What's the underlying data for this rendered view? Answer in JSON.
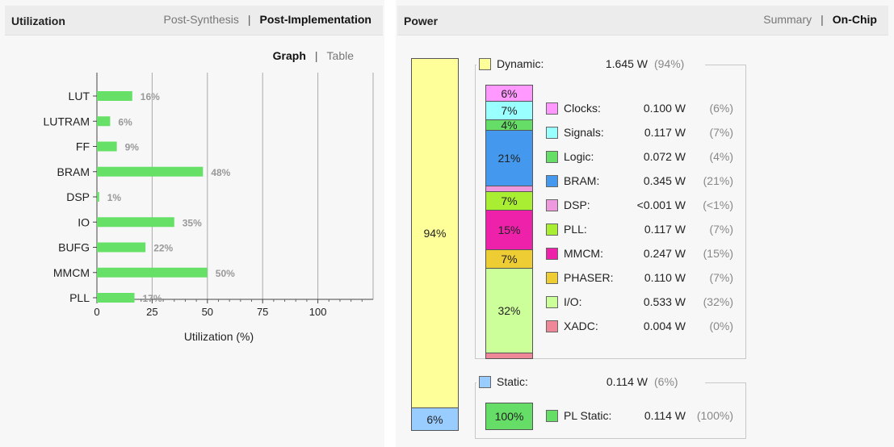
{
  "utilization": {
    "title": "Utilization",
    "tabs": [
      {
        "label": "Post-Synthesis",
        "active": false
      },
      {
        "label": "Post-Implementation",
        "active": true
      }
    ],
    "view_tabs": [
      {
        "label": "Graph",
        "active": true
      },
      {
        "label": "Table",
        "active": false
      }
    ]
  },
  "chart_data": {
    "type": "bar",
    "orientation": "horizontal",
    "categories": [
      "LUT",
      "LUTRAM",
      "FF",
      "BRAM",
      "DSP",
      "IO",
      "BUFG",
      "MMCM",
      "PLL"
    ],
    "values": [
      16,
      6,
      9,
      48,
      1,
      35,
      22,
      50,
      17
    ],
    "value_labels": [
      "16%",
      "6%",
      "9%",
      "48%",
      "1%",
      "35%",
      "22%",
      "50%",
      "17%"
    ],
    "xlabel": "Utilization (%)",
    "ylabel": "",
    "xlim": [
      0,
      125
    ],
    "xticks": [
      0,
      25,
      50,
      75,
      100
    ],
    "grid": true,
    "bar_color": "#66e066"
  },
  "power": {
    "title": "Power",
    "tabs": [
      {
        "label": "Summary",
        "active": false
      },
      {
        "label": "On-Chip",
        "active": true
      }
    ],
    "total_bar": [
      {
        "label": "94%",
        "fraction": 0.94,
        "color": "#ffff99"
      },
      {
        "label": "6%",
        "fraction": 0.06,
        "color": "#99ccff"
      }
    ],
    "dynamic": {
      "label": "Dynamic:",
      "value": "1.645 W",
      "percent": "(94%)",
      "color": "#ffff99",
      "components": [
        {
          "name": "Clocks:",
          "value": "0.100 W",
          "percent": "(6%)",
          "bar_label": "6%",
          "fraction": 0.06,
          "color": "#ff99ff"
        },
        {
          "name": "Signals:",
          "value": "0.117 W",
          "percent": "(7%)",
          "bar_label": "7%",
          "fraction": 0.07,
          "color": "#99ffff"
        },
        {
          "name": "Logic:",
          "value": "0.072 W",
          "percent": "(4%)",
          "bar_label": "4%",
          "fraction": 0.04,
          "color": "#66dd66"
        },
        {
          "name": "BRAM:",
          "value": "0.345 W",
          "percent": "(21%)",
          "bar_label": "21%",
          "fraction": 0.21,
          "color": "#4499ee"
        },
        {
          "name": "DSP:",
          "value": "<0.001 W",
          "percent": "(<1%)",
          "bar_label": "",
          "fraction": 0.015,
          "color": "#ee99dd"
        },
        {
          "name": "PLL:",
          "value": "0.117 W",
          "percent": "(7%)",
          "bar_label": "7%",
          "fraction": 0.07,
          "color": "#aaee33"
        },
        {
          "name": "MMCM:",
          "value": "0.247 W",
          "percent": "(15%)",
          "bar_label": "15%",
          "fraction": 0.15,
          "color": "#ee22aa"
        },
        {
          "name": "PHASER:",
          "value": "0.110 W",
          "percent": "(7%)",
          "bar_label": "7%",
          "fraction": 0.07,
          "color": "#eecc33"
        },
        {
          "name": "I/O:",
          "value": "0.533 W",
          "percent": "(32%)",
          "bar_label": "32%",
          "fraction": 0.32,
          "color": "#ccff99"
        },
        {
          "name": "XADC:",
          "value": "0.004 W",
          "percent": "(0%)",
          "bar_label": "",
          "fraction": 0.015,
          "color": "#ee8899"
        }
      ]
    },
    "static": {
      "label": "Static:",
      "value": "0.114 W",
      "percent": "(6%)",
      "color": "#99ccff",
      "components": [
        {
          "name": "PL Static:",
          "value": "0.114 W",
          "percent": "(100%)",
          "bar_label": "100%",
          "fraction": 1.0,
          "color": "#66dd66"
        }
      ]
    }
  }
}
